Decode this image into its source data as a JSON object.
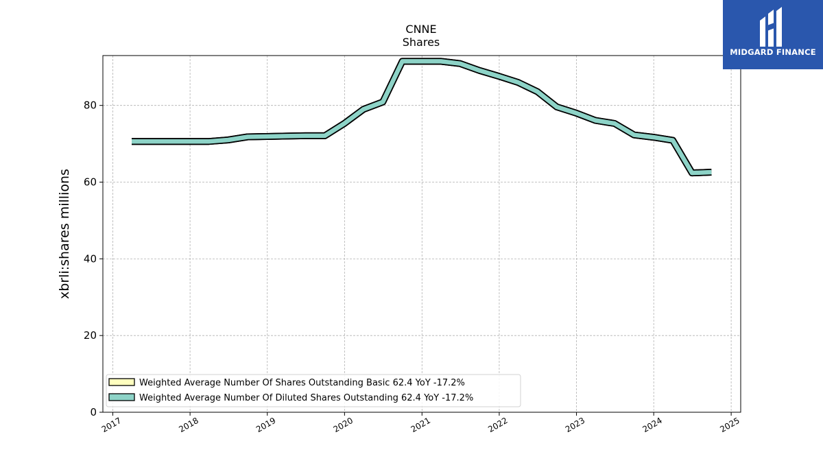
{
  "chart_data": {
    "type": "line",
    "title": "CNNE",
    "subtitle": "Shares",
    "xlabel": "",
    "ylabel": "xbrli:shares millions",
    "xlim": [
      "2016-11-15",
      "2025-02-15"
    ],
    "ylim": [
      0,
      93
    ],
    "x_ticks": [
      "2017",
      "2018",
      "2019",
      "2020",
      "2021",
      "2022",
      "2023",
      "2024",
      "2025"
    ],
    "y_ticks": [
      0,
      20,
      40,
      60,
      80
    ],
    "grid": true,
    "legend_position": "lower-left",
    "series": [
      {
        "name": "Weighted Average Number Of Shares Outstanding Basic",
        "legend_label": "Weighted Average Number Of Shares Outstanding Basic  62.4 YoY -17.2%",
        "color": "#ffffbf",
        "x": [
          "2017-03-31",
          "2017-06-30",
          "2017-09-30",
          "2017-12-31",
          "2018-03-31",
          "2018-06-30",
          "2018-09-30",
          "2018-12-31",
          "2019-03-31",
          "2019-06-30",
          "2019-09-30",
          "2019-12-31",
          "2020-03-31",
          "2020-06-30",
          "2020-09-30",
          "2020-12-31",
          "2021-03-31",
          "2021-06-30",
          "2021-09-30",
          "2021-12-31",
          "2022-03-31",
          "2022-06-30",
          "2022-09-30",
          "2022-12-31",
          "2023-03-31",
          "2023-06-30",
          "2023-09-30",
          "2023-12-31",
          "2024-03-31",
          "2024-06-30",
          "2024-09-30"
        ],
        "values": [
          70.6,
          70.6,
          70.6,
          70.6,
          70.6,
          71.0,
          71.8,
          71.9,
          72.0,
          72.1,
          72.1,
          75.3,
          79.0,
          80.9,
          91.5,
          91.5,
          91.5,
          90.9,
          89.1,
          87.6,
          86.0,
          83.6,
          79.6,
          78.0,
          76.1,
          75.3,
          72.3,
          71.7,
          70.9,
          62.4,
          62.6
        ]
      },
      {
        "name": "Weighted Average Number Of Diluted Shares Outstanding",
        "legend_label": "Weighted Average Number Of Diluted Shares Outstanding  62.4 YoY -17.2%",
        "color": "#8dd3c7",
        "x": [
          "2017-03-31",
          "2017-06-30",
          "2017-09-30",
          "2017-12-31",
          "2018-03-31",
          "2018-06-30",
          "2018-09-30",
          "2018-12-31",
          "2019-03-31",
          "2019-06-30",
          "2019-09-30",
          "2019-12-31",
          "2020-03-31",
          "2020-06-30",
          "2020-09-30",
          "2020-12-31",
          "2021-03-31",
          "2021-06-30",
          "2021-09-30",
          "2021-12-31",
          "2022-03-31",
          "2022-06-30",
          "2022-09-30",
          "2022-12-31",
          "2023-03-31",
          "2023-06-30",
          "2023-09-30",
          "2023-12-31",
          "2024-03-31",
          "2024-06-30",
          "2024-09-30"
        ],
        "values": [
          70.6,
          70.6,
          70.6,
          70.6,
          70.6,
          71.0,
          71.8,
          71.9,
          72.0,
          72.1,
          72.1,
          75.3,
          79.0,
          80.9,
          91.5,
          91.5,
          91.5,
          90.9,
          89.1,
          87.6,
          86.0,
          83.6,
          79.6,
          78.0,
          76.1,
          75.3,
          72.3,
          71.7,
          70.9,
          62.4,
          62.6
        ]
      }
    ]
  },
  "logo": {
    "text": "MIDGARD FINANCE",
    "color": "#2a57ad"
  }
}
